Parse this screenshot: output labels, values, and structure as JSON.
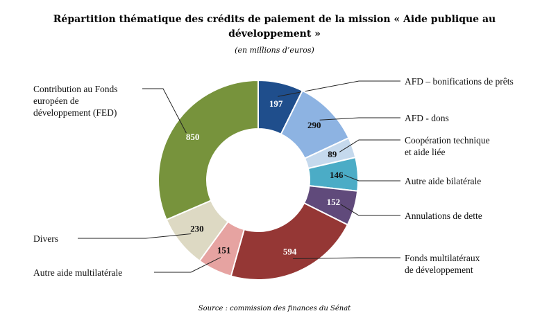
{
  "chart_data": {
    "type": "pie",
    "title": "Répartition thématique des crédits de paiement de la mission « Aide publique au développement »",
    "subtitle": "(en millions d’euros)",
    "source": "Source : commission des finances du Sénat",
    "slices": [
      {
        "label": "AFD – bonifications de prêts",
        "value": 197,
        "color": "#1f4e8c"
      },
      {
        "label": "AFD - dons",
        "value": 290,
        "color": "#8db3e2"
      },
      {
        "label": "Coopération technique et aide liée",
        "value": 89,
        "color": "#c5d9ed"
      },
      {
        "label": "Autre aide bilatérale",
        "value": 146,
        "color": "#4bacc6"
      },
      {
        "label": "Annulations de dette",
        "value": 152,
        "color": "#604a7b"
      },
      {
        "label": "Fonds multilatéraux de développement",
        "value": 594,
        "color": "#953735"
      },
      {
        "label": "Autre aide multilatérale",
        "value": 151,
        "color": "#e6a3a1"
      },
      {
        "label": "Divers",
        "value": 230,
        "color": "#ddd9c3"
      },
      {
        "label": "Contribution au Fonds européen de développement (FED)",
        "value": 850,
        "color": "#77933c"
      }
    ]
  }
}
